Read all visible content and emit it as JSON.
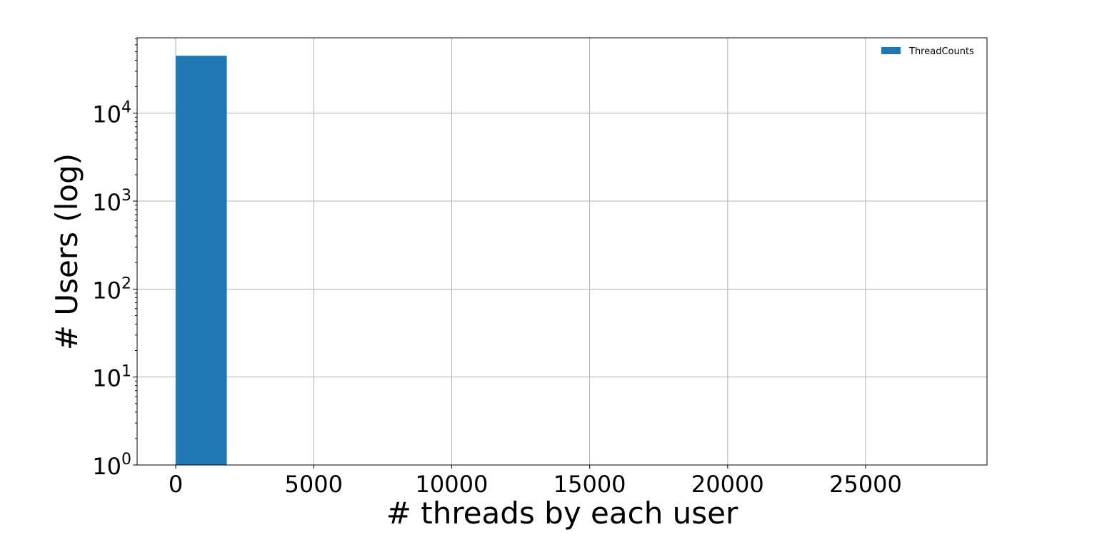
{
  "chart_data": {
    "type": "bar",
    "title": "",
    "xlabel": "# threads by each user",
    "ylabel": "# Users (log)",
    "y_scale": "log",
    "grid": true,
    "legend_position": "top-right",
    "xlim": [
      -1400,
      29400
    ],
    "ylim": [
      1,
      72000
    ],
    "x_ticks": [
      0,
      5000,
      10000,
      15000,
      20000,
      25000
    ],
    "x_tick_labels": [
      "0",
      "5000",
      "10000",
      "15000",
      "20000",
      "25000"
    ],
    "y_ticks": [
      1,
      10,
      100,
      1000,
      10000
    ],
    "y_tick_labels": [
      {
        "base": "10",
        "exp": "0"
      },
      {
        "base": "10",
        "exp": "1"
      },
      {
        "base": "10",
        "exp": "2"
      },
      {
        "base": "10",
        "exp": "3"
      },
      {
        "base": "10",
        "exp": "4"
      }
    ],
    "series": [
      {
        "name": "ThreadCounts",
        "color": "#1f77b4",
        "bins": [
          {
            "x0": 0,
            "x1": 1850,
            "count": 45000
          }
        ]
      }
    ]
  }
}
